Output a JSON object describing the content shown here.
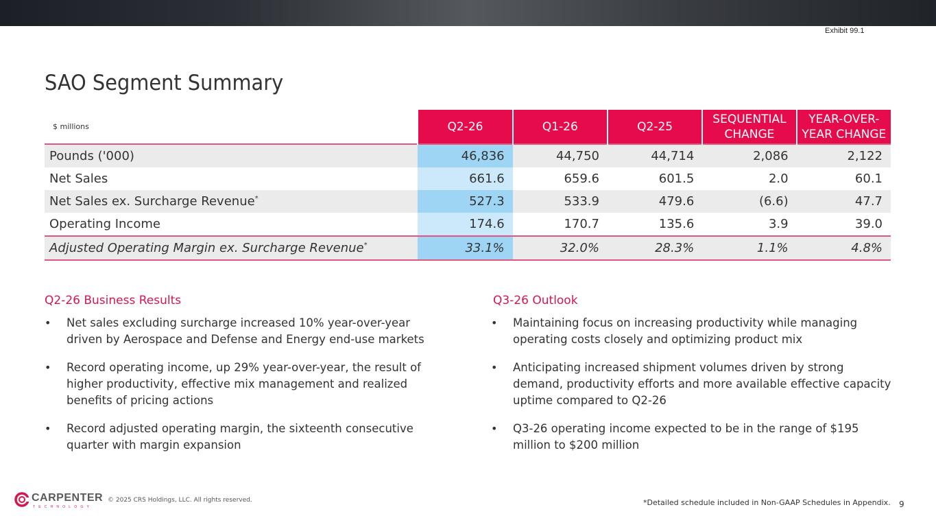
{
  "header": {
    "exhibit": "Exhibit 99.1",
    "title": "SAO Segment Summary"
  },
  "table": {
    "units": "$ millions",
    "columns": [
      "Q2-26",
      "Q1-26",
      "Q2-25",
      "SEQUENTIAL CHANGE",
      "YEAR-OVER-YEAR CHANGE"
    ],
    "column_lines": [
      [
        "Q2-26"
      ],
      [
        "Q1-26"
      ],
      [
        "Q2-25"
      ],
      [
        "SEQUENTIAL",
        "CHANGE"
      ],
      [
        "YEAR-OVER-",
        "YEAR CHANGE"
      ]
    ],
    "rows": [
      {
        "label": "Pounds ('000)",
        "footnote_mark": "",
        "values": [
          "46,836",
          "44,750",
          "44,714",
          "2,086",
          "2,122"
        ]
      },
      {
        "label": "Net Sales",
        "footnote_mark": "",
        "values": [
          "661.6",
          "659.6",
          "601.5",
          "2.0",
          "60.1"
        ]
      },
      {
        "label": "Net Sales ex. Surcharge Revenue",
        "footnote_mark": "*",
        "values": [
          "527.3",
          "533.9",
          "479.6",
          "(6.6)",
          "47.7"
        ]
      },
      {
        "label": "Operating Income",
        "footnote_mark": "",
        "values": [
          "174.6",
          "170.7",
          "135.6",
          "3.9",
          "39.0"
        ]
      },
      {
        "label": "Adjusted Operating Margin ex. Surcharge Revenue",
        "footnote_mark": "*",
        "values": [
          "33.1%",
          "32.0%",
          "28.3%",
          "1.1%",
          "4.8%"
        ]
      }
    ]
  },
  "results": {
    "heading": "Q2-26 Business Results",
    "bullets": [
      "Net sales excluding surcharge increased 10% year-over-year driven by Aerospace and Defense and Energy end-use markets",
      "Record operating income, up 29% year-over-year, the result of higher productivity, effective mix management and realized benefits of pricing actions",
      "Record adjusted operating margin, the sixteenth consecutive quarter with margin expansion"
    ]
  },
  "outlook": {
    "heading": "Q3-26 Outlook",
    "bullets": [
      "Maintaining focus on increasing productivity while managing operating costs closely and optimizing product mix",
      "Anticipating increased shipment volumes driven by strong demand, productivity efforts and more available effective capacity uptime compared to Q2-26",
      "Q3-26 operating income expected to be in the range of $195 million to $200 million"
    ]
  },
  "footer": {
    "logo_text": "CARPENTER",
    "logo_subtext": "TECHNOLOGY",
    "copyright": "© 2025 CRS Holdings, LLC. All rights reserved.",
    "footnote": "*Detailed schedule included in Non-GAAP Schedules in Appendix.",
    "page_number": "9"
  },
  "colors": {
    "accent": "#e60c4b",
    "highlight_dark": "#9fd5f4",
    "highlight_light": "#cbe9fb",
    "shade": "#ebebeb"
  }
}
